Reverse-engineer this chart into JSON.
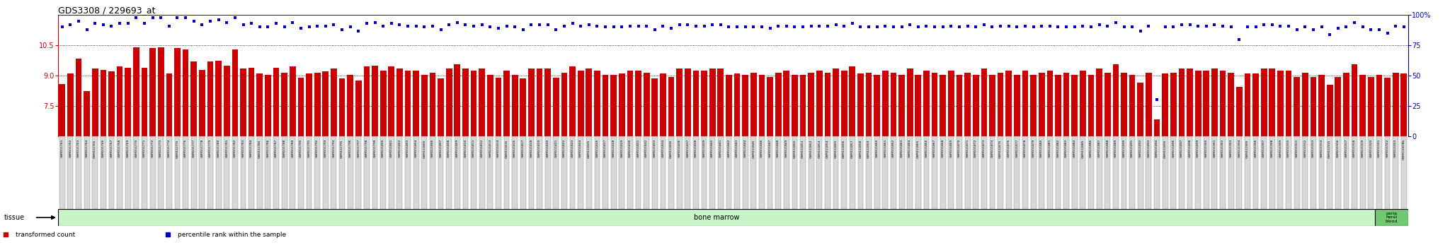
{
  "title": "GDS3308 / 229693_at",
  "title_fontsize": 9,
  "left_ylim": [
    6,
    12
  ],
  "right_ylim": [
    0,
    100
  ],
  "left_yticks": [
    7.5,
    9.0,
    10.5
  ],
  "right_yticks": [
    0,
    25,
    50,
    75,
    100
  ],
  "left_tick_color": "#cc0000",
  "right_tick_color": "#0000cc",
  "bar_color": "#cc0000",
  "dot_color": "#0000cc",
  "tissue_label": "tissue",
  "tissue_fill": "#c8f4c8",
  "tissue_fill_pb": "#70c870",
  "bone_marrow_label": "bone marrow",
  "peripheral_blood_label": "perip\nheral\nblood",
  "bg_color": "#ffffff",
  "samples": [
    "GSM311761",
    "GSM311762",
    "GSM311763",
    "GSM311764",
    "GSM311765",
    "GSM311766",
    "GSM311767",
    "GSM311768",
    "GSM311769",
    "GSM311770",
    "GSM311771",
    "GSM311772",
    "GSM311773",
    "GSM311774",
    "GSM311775",
    "GSM311776",
    "GSM311777",
    "GSM311778",
    "GSM311779",
    "GSM311780",
    "GSM311781",
    "GSM311782",
    "GSM311783",
    "GSM311784",
    "GSM311785",
    "GSM311786",
    "GSM311787",
    "GSM311788",
    "GSM311789",
    "GSM311790",
    "GSM311791",
    "GSM311792",
    "GSM311793",
    "GSM311794",
    "GSM311795",
    "GSM311796",
    "GSM311797",
    "GSM311798",
    "GSM311799",
    "GSM311800",
    "GSM311801",
    "GSM311802",
    "GSM311803",
    "GSM311804",
    "GSM311805",
    "GSM311806",
    "GSM311807",
    "GSM311808",
    "GSM311809",
    "GSM311810",
    "GSM311811",
    "GSM311812",
    "GSM311813",
    "GSM311814",
    "GSM311815",
    "GSM311816",
    "GSM311817",
    "GSM311818",
    "GSM311819",
    "GSM311820",
    "GSM311821",
    "GSM311822",
    "GSM311823",
    "GSM311824",
    "GSM311825",
    "GSM311826",
    "GSM311827",
    "GSM311828",
    "GSM311829",
    "GSM311830",
    "GSM311831",
    "GSM311832",
    "GSM311833",
    "GSM311834",
    "GSM311835",
    "GSM311836",
    "GSM311837",
    "GSM311838",
    "GSM311839",
    "GSM311840",
    "GSM311841",
    "GSM311842",
    "GSM311843",
    "GSM311844",
    "GSM311845",
    "GSM311846",
    "GSM311847",
    "GSM311848",
    "GSM311849",
    "GSM311850",
    "GSM311851",
    "GSM311852",
    "GSM311853",
    "GSM311854",
    "GSM311855",
    "GSM311856",
    "GSM311857",
    "GSM311858",
    "GSM311859",
    "GSM311860",
    "GSM311861",
    "GSM311862",
    "GSM311863",
    "GSM311864",
    "GSM311865",
    "GSM311866",
    "GSM311867",
    "GSM311868",
    "GSM311869",
    "GSM311870",
    "GSM311871",
    "GSM311872",
    "GSM311873",
    "GSM311874",
    "GSM311875",
    "GSM311876",
    "GSM311877",
    "GSM311878",
    "GSM311879",
    "GSM311880",
    "GSM311881",
    "GSM311882",
    "GSM311883",
    "GSM311884",
    "GSM311885",
    "GSM311886",
    "GSM311887",
    "GSM311888",
    "GSM311889",
    "GSM311890",
    "GSM311891",
    "GSM311892",
    "GSM311893",
    "GSM311894",
    "GSM311895",
    "GSM311896",
    "GSM311897",
    "GSM311898",
    "GSM311899",
    "GSM311900",
    "GSM311901",
    "GSM311902",
    "GSM311903",
    "GSM311904",
    "GSM311905",
    "GSM311906",
    "GSM311907",
    "GSM311908",
    "GSM311909",
    "GSM311910",
    "GSM311911",
    "GSM311912",
    "GSM311913",
    "GSM311914",
    "GSM311915",
    "GSM311916",
    "GSM311917",
    "GSM311918",
    "GSM311919",
    "GSM311920",
    "GSM311921",
    "GSM311922",
    "GSM311923",
    "GSM311878b"
  ],
  "bar_values": [
    8.6,
    9.1,
    9.85,
    8.25,
    9.35,
    9.3,
    9.2,
    9.45,
    9.4,
    10.4,
    9.4,
    10.35,
    10.4,
    9.1,
    10.35,
    10.3,
    9.7,
    9.3,
    9.7,
    9.75,
    9.5,
    10.3,
    9.35,
    9.4,
    9.1,
    9.05,
    9.4,
    9.15,
    9.45,
    8.9,
    9.1,
    9.15,
    9.2,
    9.35,
    8.85,
    9.05,
    8.75,
    9.45,
    9.5,
    9.25,
    9.45,
    9.35,
    9.25,
    9.25,
    9.05,
    9.15,
    8.85,
    9.35,
    9.55,
    9.35,
    9.25,
    9.35,
    9.05,
    8.9,
    9.25,
    9.05,
    8.85,
    9.35,
    9.35,
    9.35,
    8.9,
    9.15,
    9.45,
    9.25,
    9.35,
    9.25,
    9.05,
    9.05,
    9.1,
    9.25,
    9.25,
    9.15,
    8.85,
    9.1,
    8.95,
    9.35,
    9.35,
    9.25,
    9.25,
    9.35,
    9.35,
    9.05,
    9.1,
    9.05,
    9.15,
    9.05,
    8.95,
    9.15,
    9.25,
    9.05,
    9.05,
    9.15,
    9.25,
    9.15,
    9.35,
    9.25,
    9.45,
    9.1,
    9.15,
    9.05,
    9.25,
    9.15,
    9.05,
    9.35,
    9.05,
    9.25,
    9.15,
    9.05,
    9.25,
    9.05,
    9.15,
    9.05,
    9.35,
    9.05,
    9.15,
    9.25,
    9.05,
    9.25,
    9.05,
    9.15,
    9.25,
    9.05,
    9.15,
    9.05,
    9.25,
    9.05,
    9.35,
    9.15,
    9.55,
    9.15,
    9.05,
    8.65,
    9.15,
    6.85,
    9.1,
    9.15,
    9.35,
    9.35,
    9.25,
    9.25,
    9.35,
    9.25,
    9.15,
    8.45,
    9.1,
    9.1,
    9.35,
    9.35,
    9.25,
    9.25,
    8.95,
    9.15,
    8.95,
    9.05,
    8.55,
    8.95,
    9.15,
    9.55,
    9.05,
    8.95,
    9.05,
    8.9,
    9.15,
    9.1
  ],
  "dot_values": [
    90,
    92,
    95,
    88,
    93,
    92,
    91,
    93,
    93,
    98,
    93,
    98,
    98,
    91,
    98,
    98,
    95,
    92,
    95,
    96,
    94,
    98,
    92,
    93,
    90,
    90,
    93,
    90,
    94,
    89,
    90,
    91,
    91,
    92,
    88,
    90,
    87,
    93,
    94,
    91,
    93,
    92,
    91,
    91,
    90,
    91,
    88,
    92,
    94,
    92,
    91,
    92,
    90,
    89,
    91,
    90,
    88,
    92,
    92,
    92,
    88,
    91,
    93,
    91,
    92,
    91,
    90,
    90,
    90,
    91,
    91,
    91,
    88,
    91,
    89,
    92,
    92,
    91,
    91,
    92,
    92,
    90,
    90,
    90,
    90,
    90,
    89,
    91,
    91,
    90,
    90,
    91,
    91,
    91,
    92,
    91,
    93,
    90,
    90,
    90,
    91,
    90,
    90,
    92,
    90,
    91,
    90,
    90,
    91,
    90,
    91,
    90,
    92,
    90,
    91,
    91,
    90,
    91,
    90,
    91,
    91,
    90,
    90,
    90,
    91,
    90,
    92,
    91,
    94,
    90,
    90,
    87,
    91,
    30,
    90,
    90,
    92,
    92,
    91,
    91,
    92,
    91,
    90,
    80,
    90,
    90,
    92,
    92,
    91,
    91,
    88,
    90,
    88,
    90,
    84,
    89,
    90,
    94,
    90,
    88,
    88,
    85,
    91,
    90
  ],
  "bone_marrow_count": 160,
  "legend_items": [
    {
      "label": "transformed count",
      "color": "#cc0000"
    },
    {
      "label": "percentile rank within the sample",
      "color": "#0000cc"
    }
  ]
}
